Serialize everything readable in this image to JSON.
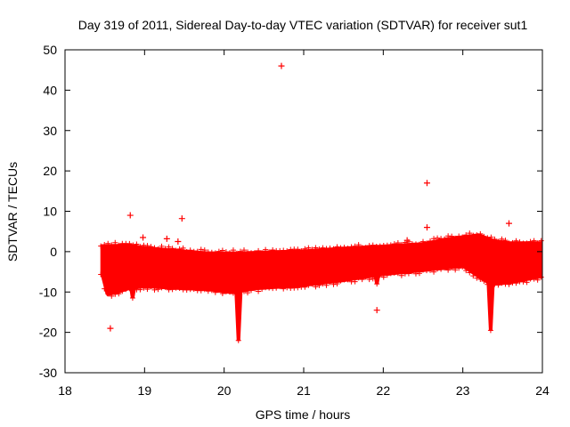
{
  "chart_data": {
    "type": "scatter",
    "title": "Day 319 of 2011, Sidereal Day-to-day VTEC variation (SDTVAR) for receiver sut1",
    "xlabel": "GPS time / hours",
    "ylabel": "SDTVAR / TECUs",
    "xlim": [
      18,
      24
    ],
    "ylim": [
      -30,
      50
    ],
    "x_ticks": [
      "18",
      "19",
      "20",
      "21",
      "22",
      "23",
      "24"
    ],
    "y_ticks": [
      "-30",
      "-20",
      "-10",
      "0",
      "10",
      "20",
      "30",
      "40",
      "50"
    ],
    "grid": false,
    "legend": "none",
    "marker": "+",
    "series_color": "#ff0000",
    "band": {
      "description": "dense continuous band of + markers",
      "x_start": 18.45,
      "x_end": 24.0,
      "upper": [
        [
          18.45,
          1.2
        ],
        [
          18.8,
          1.5
        ],
        [
          19.0,
          0.8
        ],
        [
          19.5,
          0.0
        ],
        [
          19.8,
          -0.5
        ],
        [
          20.2,
          -0.5
        ],
        [
          20.5,
          -0.3
        ],
        [
          21.0,
          0.0
        ],
        [
          21.5,
          0.7
        ],
        [
          22.0,
          1.2
        ],
        [
          22.5,
          1.8
        ],
        [
          22.8,
          3.0
        ],
        [
          23.2,
          4.0
        ],
        [
          23.4,
          2.5
        ],
        [
          23.6,
          2.0
        ],
        [
          24.0,
          2.0
        ]
      ],
      "lower": [
        [
          18.45,
          -5.0
        ],
        [
          18.52,
          -10.5
        ],
        [
          18.65,
          -10.0
        ],
        [
          18.8,
          -9.0
        ],
        [
          19.0,
          -8.5
        ],
        [
          19.5,
          -9.0
        ],
        [
          19.8,
          -9.2
        ],
        [
          20.1,
          -10.0
        ],
        [
          20.4,
          -9.0
        ],
        [
          21.0,
          -8.2
        ],
        [
          21.5,
          -7.0
        ],
        [
          22.0,
          -5.5
        ],
        [
          22.5,
          -4.5
        ],
        [
          23.0,
          -3.5
        ],
        [
          23.35,
          -8.0
        ],
        [
          23.6,
          -7.5
        ],
        [
          24.0,
          -6.0
        ]
      ]
    },
    "spikes": [
      {
        "x": 20.18,
        "top": -10,
        "bottom": -22
      },
      {
        "x": 23.35,
        "top": -8,
        "bottom": -19.5
      },
      {
        "x": 18.85,
        "top": -8,
        "bottom": -11.5
      },
      {
        "x": 21.92,
        "top": -5,
        "bottom": -8
      }
    ],
    "outliers": [
      {
        "x": 20.72,
        "y": 46
      },
      {
        "x": 22.55,
        "y": 17
      },
      {
        "x": 18.82,
        "y": 9
      },
      {
        "x": 19.47,
        "y": 8.2
      },
      {
        "x": 18.98,
        "y": 3.5
      },
      {
        "x": 23.58,
        "y": 7
      },
      {
        "x": 22.55,
        "y": 6
      },
      {
        "x": 18.57,
        "y": -19
      },
      {
        "x": 21.92,
        "y": -14.5
      },
      {
        "x": 19.42,
        "y": 2.5
      },
      {
        "x": 19.28,
        "y": 3.2
      },
      {
        "x": 22.3,
        "y": 2.8
      }
    ]
  }
}
